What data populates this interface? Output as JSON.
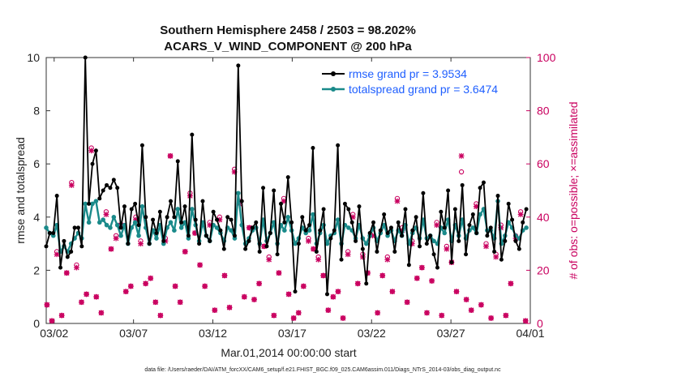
{
  "chart_data": {
    "type": "line",
    "title": "Southern Hemisphere 2458 / 2503 = 98.202%",
    "subtitle": "ACARS_V_WIND_COMPONENT @ 200 hPa",
    "xlabel": "Mar.01,2014 00:00:00 start",
    "ylabel": "rmse and totalspread",
    "ylabel_right": "# of obs: o=possible; ×=assimilated",
    "footer": "data file: /Users/raeder/DAI/ATM_forcXX/CAM6_setup/f.e21.FHIST_BGC.f09_025.CAM6assim.011/Diags_NTrS_2014-03/obs_diag_output.nc",
    "xlim": [
      1.5,
      32
    ],
    "ylim": [
      0,
      10
    ],
    "ylim_right": [
      0,
      100
    ],
    "xticks": [
      2,
      7,
      12,
      17,
      22,
      27,
      32
    ],
    "xtick_labels": [
      "03/02",
      "03/07",
      "03/12",
      "03/17",
      "03/22",
      "03/27",
      "04/01"
    ],
    "yticks": [
      0,
      2,
      4,
      6,
      8,
      10
    ],
    "yticks_right": [
      0,
      20,
      40,
      60,
      80,
      100
    ],
    "legend_location": "top-right",
    "series": [
      {
        "name": "rmse grand pr = 3.9534",
        "color": "#000000",
        "axis": "left",
        "values": [
          2.9,
          3.4,
          3.4,
          4.8,
          2.1,
          3.1,
          2.5,
          2.7,
          3.6,
          3.6,
          2.9,
          10.0,
          4.5,
          6.0,
          6.5,
          4.7,
          5.0,
          5.2,
          5.1,
          5.4,
          5.1,
          3.6,
          4.4,
          3.0,
          4.3,
          4.5,
          3.7,
          6.7,
          4.0,
          3.0,
          3.9,
          3.4,
          4.2,
          3.1,
          4.0,
          4.6,
          4.0,
          6.1,
          3.8,
          4.4,
          3.3,
          7.1,
          3.9,
          3.0,
          4.6,
          3.3,
          3.1,
          4.2,
          3.9,
          3.5,
          2.8,
          4.0,
          3.9,
          3.3,
          9.7,
          4.6,
          2.8,
          3.1,
          3.6,
          3.8,
          2.7,
          5.1,
          2.9,
          3.4,
          5.0,
          2.6,
          4.5,
          3.8,
          5.5,
          3.8,
          1.2,
          3.0,
          4.0,
          3.5,
          3.7,
          6.6,
          2.7,
          3.5,
          4.3,
          1.1,
          3.2,
          3.5,
          6.7,
          2.4,
          4.5,
          4.3,
          3.8,
          3.1,
          4.4,
          2.8,
          1.5,
          3.4,
          3.8,
          2.7,
          3.5,
          4.1,
          3.4,
          3.6,
          2.7,
          3.8,
          3.3,
          4.3,
          2.2,
          3.5,
          4.0,
          2.9,
          4.9,
          3.0,
          3.3,
          2.6,
          2.1,
          4.2,
          3.6,
          5.0,
          2.3,
          4.3,
          3.1,
          5.2,
          2.6,
          3.7,
          4.1,
          3.4,
          5.1,
          5.3,
          3.3,
          3.6,
          2.7,
          4.8,
          2.4,
          3.1,
          4.5,
          3.9,
          3.1,
          2.8,
          3.8,
          4.3
        ]
      },
      {
        "name": "totalspread grand pr = 3.6474",
        "color": "#1a8a8a",
        "axis": "left",
        "values": [
          3.6,
          3.4,
          3.3,
          3.7,
          2.7,
          2.9,
          2.7,
          3.0,
          3.2,
          3.4,
          3.2,
          4.5,
          3.8,
          4.5,
          4.6,
          3.8,
          3.9,
          3.7,
          3.6,
          4.0,
          3.7,
          3.3,
          3.7,
          3.0,
          3.6,
          3.8,
          3.3,
          4.4,
          3.6,
          3.0,
          3.5,
          3.2,
          3.7,
          3.0,
          3.6,
          3.8,
          3.5,
          4.3,
          3.6,
          3.8,
          3.2,
          4.3,
          3.7,
          3.1,
          3.8,
          3.3,
          3.1,
          3.7,
          3.6,
          3.4,
          3.1,
          3.6,
          3.5,
          3.2,
          4.9,
          3.7,
          3.0,
          3.2,
          3.5,
          3.6,
          3.0,
          3.9,
          3.1,
          3.4,
          3.8,
          3.0,
          3.7,
          3.5,
          4.0,
          3.5,
          3.0,
          3.2,
          3.6,
          3.4,
          3.5,
          4.1,
          3.0,
          3.4,
          3.7,
          3.0,
          3.3,
          3.4,
          3.9,
          3.0,
          3.7,
          3.6,
          3.5,
          3.2,
          3.7,
          3.2,
          3.0,
          3.3,
          3.6,
          3.1,
          3.4,
          3.7,
          3.3,
          3.5,
          3.1,
          3.5,
          3.3,
          3.7,
          3.0,
          3.4,
          3.6,
          3.2,
          3.9,
          3.2,
          3.3,
          3.1,
          3.0,
          3.6,
          3.4,
          3.9,
          3.1,
          3.7,
          3.3,
          3.9,
          3.2,
          3.5,
          3.6,
          3.4,
          4.1,
          4.3,
          3.5,
          3.5,
          3.2,
          4.6,
          3.0,
          3.3,
          3.8,
          3.6,
          3.3,
          3.2,
          3.5,
          3.6
        ]
      },
      {
        "name": "obs possible",
        "color": "#c9005f",
        "axis": "right",
        "marker": "circle",
        "values": [
          7,
          1,
          27,
          3,
          19,
          53,
          22,
          8,
          11,
          66,
          10,
          4,
          42,
          28,
          33,
          37,
          12,
          14,
          40,
          31,
          15,
          17,
          8,
          3,
          32,
          63,
          14,
          8,
          27,
          49,
          34,
          22,
          14,
          38,
          5,
          40,
          18,
          6,
          58,
          46,
          10,
          36,
          9,
          15,
          29,
          25,
          3,
          19,
          47,
          11,
          2,
          4,
          14,
          32,
          28,
          25,
          18,
          5,
          10,
          12,
          2,
          27,
          41,
          15,
          26,
          19,
          34,
          4,
          18,
          25,
          12,
          47,
          36,
          8,
          31,
          17,
          21,
          4,
          16,
          38,
          3,
          29,
          23,
          12,
          57,
          9,
          5,
          45,
          7,
          30,
          2,
          26,
          37,
          3,
          15,
          33,
          42,
          1
        ]
      },
      {
        "name": "obs assimilated",
        "color": "#c9005f",
        "axis": "right",
        "marker": "x",
        "values": [
          7,
          1,
          26,
          3,
          19,
          52,
          21,
          8,
          11,
          65,
          10,
          4,
          41,
          28,
          32,
          37,
          12,
          14,
          39,
          30,
          15,
          17,
          8,
          3,
          31,
          63,
          14,
          8,
          27,
          48,
          34,
          22,
          14,
          37,
          5,
          39,
          18,
          6,
          57,
          45,
          10,
          36,
          9,
          15,
          29,
          24,
          3,
          19,
          46,
          11,
          2,
          4,
          14,
          31,
          28,
          24,
          18,
          5,
          10,
          12,
          2,
          26,
          40,
          15,
          25,
          19,
          33,
          4,
          18,
          24,
          12,
          46,
          35,
          8,
          30,
          17,
          21,
          4,
          16,
          37,
          3,
          28,
          23,
          12,
          63,
          9,
          5,
          44,
          7,
          29,
          2,
          25,
          36,
          3,
          15,
          32,
          41,
          1
        ]
      }
    ]
  }
}
